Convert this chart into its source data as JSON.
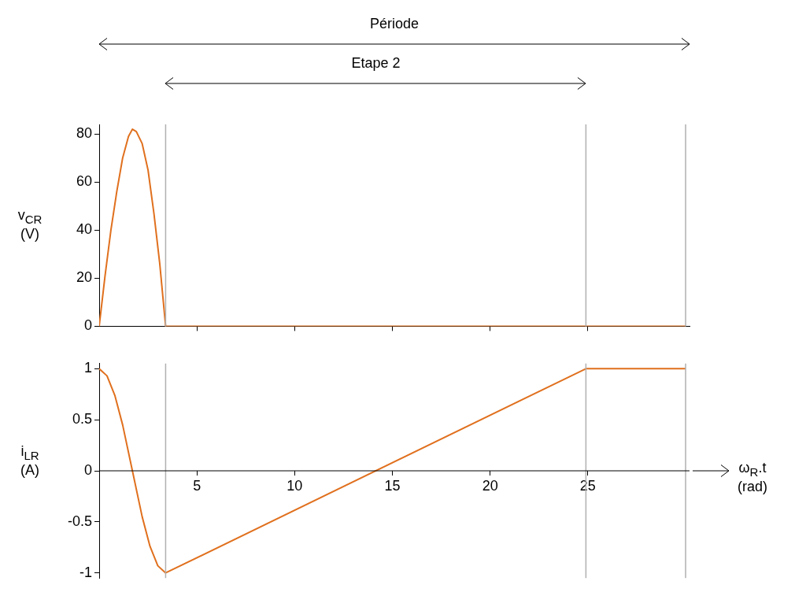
{
  "chart_data": [
    {
      "type": "line",
      "ylabel": "v$_{CR}$ (V)",
      "color": "#e0701e",
      "x": [
        0,
        0.3,
        0.6,
        0.9,
        1.2,
        1.5,
        1.7,
        1.9,
        2.2,
        2.5,
        2.8,
        3.1,
        3.4,
        30
      ],
      "values": [
        0,
        21,
        40,
        56,
        70,
        79,
        82,
        81,
        76,
        65,
        47,
        26,
        0,
        0
      ],
      "xlim": [
        0,
        30.2
      ],
      "xticks": [
        {
          "value": 5,
          "label": null
        },
        {
          "value": 10,
          "label": null
        },
        {
          "value": 15,
          "label": null
        },
        {
          "value": 20,
          "label": null
        },
        {
          "value": 25,
          "label": null
        }
      ],
      "ylim": [
        0,
        84
      ],
      "yticks": [
        0,
        20,
        40,
        60,
        80
      ],
      "tick_labels": "y",
      "grid": false,
      "legend": false,
      "ref_lines": [
        {
          "axis": "x",
          "value": 3.4
        },
        {
          "axis": "x",
          "value": 24.9
        },
        {
          "axis": "x",
          "value": 30
        }
      ],
      "annotations": [
        "Période",
        "Etape 2"
      ]
    },
    {
      "type": "line",
      "ylabel": "i$_{LR}$ (A)",
      "xlabel": "ω$_{R}$.t (rad)",
      "color": "#e0701e",
      "x": [
        0,
        0.4,
        0.8,
        1.2,
        1.7,
        2.2,
        2.6,
        3.0,
        3.4,
        24.9,
        30
      ],
      "values": [
        1,
        0.93,
        0.74,
        0.45,
        0,
        -0.45,
        -0.74,
        -0.93,
        -1,
        1,
        1
      ],
      "xlim": [
        0,
        30.2
      ],
      "xticks": [
        5,
        10,
        15,
        20,
        25
      ],
      "ylim": [
        -1.05,
        1.05
      ],
      "yticks": [
        -1,
        -0.5,
        0,
        0.5,
        1
      ],
      "grid": false,
      "legend": false,
      "ref_lines": [
        {
          "axis": "x",
          "value": 3.4
        },
        {
          "axis": "x",
          "value": 24.9
        },
        {
          "axis": "x",
          "value": 30
        }
      ]
    }
  ]
}
